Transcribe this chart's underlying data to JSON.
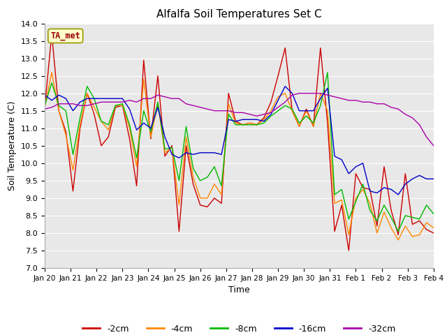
{
  "title": "Alfalfa Soil Temperatures Set C",
  "xlabel": "Time",
  "ylabel": "Soil Temperature (C)",
  "ylim": [
    7.0,
    14.0
  ],
  "yticks": [
    7.0,
    7.5,
    8.0,
    8.5,
    9.0,
    9.5,
    10.0,
    10.5,
    11.0,
    11.5,
    12.0,
    12.5,
    13.0,
    13.5,
    14.0
  ],
  "xtick_labels": [
    "Jan 20",
    "Jan 21",
    "Jan 22",
    "Jan 23",
    "Jan 24",
    "Jan 25",
    "Jan 26",
    "Jan 27",
    "Jan 28",
    "Jan 29",
    "Jan 30",
    "Jan 31",
    "Feb 1",
    "Feb 2",
    "Feb 3",
    "Feb 4"
  ],
  "colors": {
    "-2cm": "#cc0000",
    "-4cm": "#ff8800",
    "-8cm": "#00bb00",
    "-16cm": "#0000cc",
    "-32cm": "#aa00aa"
  },
  "annotation_text": "TA_met",
  "annotation_color": "#990000",
  "annotation_bg": "#ffffcc",
  "annotation_edge": "#999900",
  "bg_color": "#e8e8e8",
  "grid_color": "#ffffff",
  "series": {
    "-2cm": [
      11.6,
      13.7,
      11.5,
      10.9,
      9.2,
      11.0,
      12.0,
      11.4,
      10.5,
      10.75,
      11.6,
      11.65,
      10.7,
      9.35,
      12.95,
      10.7,
      12.5,
      10.2,
      10.5,
      8.05,
      10.5,
      9.4,
      8.8,
      8.75,
      9.0,
      8.85,
      12.0,
      11.2,
      11.1,
      11.15,
      11.1,
      11.3,
      11.75,
      12.5,
      13.3,
      11.5,
      11.05,
      11.55,
      11.05,
      13.3,
      11.15,
      8.05,
      8.8,
      7.5,
      9.7,
      9.3,
      9.25,
      8.2,
      9.9,
      8.65,
      7.95,
      9.7,
      8.25,
      8.35,
      8.1,
      8.0
    ],
    "-4cm": [
      11.6,
      12.6,
      11.5,
      10.8,
      9.8,
      11.1,
      12.0,
      11.6,
      11.2,
      10.95,
      11.65,
      11.65,
      11.0,
      9.9,
      12.4,
      10.75,
      11.7,
      10.3,
      10.45,
      8.8,
      10.75,
      9.6,
      9.0,
      9.0,
      9.4,
      9.1,
      11.7,
      11.15,
      11.1,
      11.15,
      11.1,
      11.25,
      11.5,
      11.9,
      12.0,
      11.5,
      11.05,
      11.5,
      11.05,
      12.0,
      11.5,
      8.85,
      8.95,
      7.95,
      9.0,
      9.25,
      8.85,
      8.0,
      8.6,
      8.15,
      7.8,
      8.2,
      7.9,
      7.95,
      8.3,
      8.15
    ],
    "-8cm": [
      11.65,
      12.3,
      11.65,
      11.5,
      10.25,
      11.3,
      12.2,
      11.85,
      11.2,
      11.1,
      11.65,
      11.7,
      11.1,
      10.15,
      11.5,
      10.9,
      11.75,
      10.4,
      10.45,
      9.5,
      11.05,
      9.85,
      9.5,
      9.6,
      9.9,
      9.35,
      11.4,
      11.1,
      11.1,
      11.1,
      11.1,
      11.15,
      11.35,
      11.5,
      11.65,
      11.55,
      11.15,
      11.35,
      11.15,
      11.65,
      12.6,
      9.1,
      9.25,
      8.4,
      8.9,
      9.4,
      8.65,
      8.35,
      8.8,
      8.45,
      8.05,
      8.5,
      8.45,
      8.4,
      8.8,
      8.55
    ],
    "-16cm": [
      11.95,
      11.8,
      11.95,
      11.85,
      11.5,
      11.75,
      11.85,
      11.85,
      11.85,
      11.85,
      11.85,
      11.85,
      11.55,
      10.95,
      11.15,
      11.0,
      11.6,
      10.75,
      10.25,
      10.15,
      10.3,
      10.25,
      10.3,
      10.3,
      10.3,
      10.25,
      11.25,
      11.2,
      11.25,
      11.25,
      11.25,
      11.2,
      11.4,
      11.8,
      12.2,
      12.0,
      11.5,
      11.5,
      11.5,
      11.85,
      12.15,
      10.2,
      10.1,
      9.7,
      9.9,
      10.0,
      9.2,
      9.15,
      9.3,
      9.25,
      9.1,
      9.4,
      9.55,
      9.65,
      9.55,
      9.55
    ],
    "-32cm": [
      11.55,
      11.6,
      11.7,
      11.7,
      11.7,
      11.65,
      11.65,
      11.7,
      11.75,
      11.75,
      11.75,
      11.75,
      11.8,
      11.75,
      11.85,
      11.85,
      11.95,
      11.9,
      11.85,
      11.85,
      11.7,
      11.65,
      11.6,
      11.55,
      11.5,
      11.5,
      11.5,
      11.45,
      11.45,
      11.4,
      11.35,
      11.4,
      11.45,
      11.6,
      11.75,
      11.95,
      12.0,
      12.0,
      12.0,
      12.0,
      11.95,
      11.9,
      11.85,
      11.8,
      11.8,
      11.75,
      11.75,
      11.7,
      11.7,
      11.6,
      11.55,
      11.4,
      11.3,
      11.1,
      10.75,
      10.5
    ]
  }
}
